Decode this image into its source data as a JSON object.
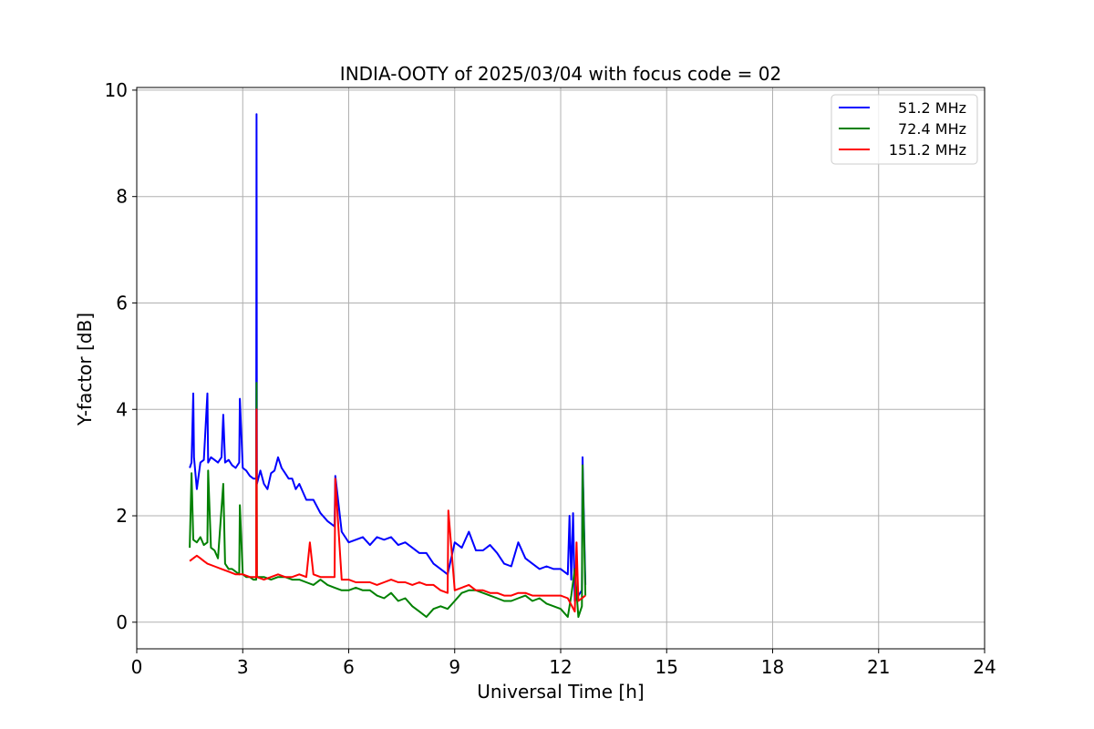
{
  "chart_data": {
    "type": "line",
    "title": "INDIA-OOTY of 2025/03/04 with focus code = 02",
    "xlabel": "Universal Time [h]",
    "ylabel": "Y-factor [dB]",
    "xlim": [
      0,
      24
    ],
    "ylim": [
      -0.5,
      10.05
    ],
    "xticks": [
      "0",
      "3",
      "6",
      "9",
      "12",
      "15",
      "18",
      "21",
      "24"
    ],
    "yticks": [
      "0",
      "2",
      "4",
      "6",
      "8",
      "10"
    ],
    "grid": true,
    "legend_position": "top-right",
    "series": [
      {
        "name": " 51.2 MHz",
        "color": "#0000ff",
        "x": [
          1.5,
          1.55,
          1.6,
          1.62,
          1.7,
          1.8,
          1.9,
          2.0,
          2.02,
          2.1,
          2.2,
          2.3,
          2.4,
          2.45,
          2.5,
          2.6,
          2.7,
          2.8,
          2.9,
          2.92,
          3.0,
          3.1,
          3.2,
          3.3,
          3.38,
          3.39,
          3.4,
          3.5,
          3.6,
          3.7,
          3.8,
          3.9,
          4.0,
          4.1,
          4.2,
          4.3,
          4.4,
          4.5,
          4.6,
          4.8,
          5.0,
          5.2,
          5.4,
          5.6,
          5.62,
          5.8,
          6.0,
          6.2,
          6.4,
          6.6,
          6.8,
          7.0,
          7.2,
          7.4,
          7.6,
          7.8,
          8.0,
          8.2,
          8.4,
          8.6,
          8.8,
          9.0,
          9.2,
          9.4,
          9.6,
          9.8,
          10.0,
          10.2,
          10.4,
          10.6,
          10.8,
          11.0,
          11.2,
          11.4,
          11.6,
          11.8,
          12.0,
          12.2,
          12.25,
          12.3,
          12.35,
          12.4,
          12.5,
          12.6,
          12.62,
          12.7
        ],
        "y": [
          2.9,
          3.0,
          4.3,
          3.1,
          2.5,
          3.0,
          3.05,
          4.3,
          3.0,
          3.1,
          3.05,
          3.0,
          3.1,
          3.9,
          3.0,
          3.05,
          2.95,
          2.9,
          3.0,
          4.2,
          2.9,
          2.85,
          2.75,
          2.7,
          2.7,
          9.55,
          2.6,
          2.85,
          2.6,
          2.5,
          2.8,
          2.85,
          3.1,
          2.9,
          2.8,
          2.7,
          2.7,
          2.5,
          2.6,
          2.3,
          2.3,
          2.05,
          1.9,
          1.8,
          2.75,
          1.7,
          1.5,
          1.55,
          1.6,
          1.45,
          1.6,
          1.55,
          1.6,
          1.45,
          1.5,
          1.4,
          1.3,
          1.3,
          1.1,
          1.0,
          0.9,
          1.5,
          1.4,
          1.7,
          1.35,
          1.35,
          1.45,
          1.3,
          1.1,
          1.05,
          1.5,
          1.2,
          1.1,
          1.0,
          1.05,
          1.0,
          1.0,
          0.9,
          2.0,
          0.8,
          2.05,
          0.4,
          0.5,
          0.6,
          3.1,
          0.7
        ]
      },
      {
        "name": " 72.4 MHz",
        "color": "#008000",
        "x": [
          1.5,
          1.55,
          1.6,
          1.7,
          1.8,
          1.9,
          2.0,
          2.02,
          2.1,
          2.2,
          2.3,
          2.45,
          2.5,
          2.6,
          2.7,
          2.8,
          2.9,
          2.92,
          3.0,
          3.1,
          3.2,
          3.3,
          3.38,
          3.39,
          3.4,
          3.6,
          3.8,
          4.0,
          4.2,
          4.4,
          4.6,
          4.8,
          5.0,
          5.2,
          5.4,
          5.6,
          5.8,
          6.0,
          6.2,
          6.4,
          6.6,
          6.8,
          7.0,
          7.2,
          7.4,
          7.6,
          7.8,
          8.0,
          8.2,
          8.4,
          8.6,
          8.8,
          9.0,
          9.2,
          9.4,
          9.6,
          9.8,
          10.0,
          10.2,
          10.4,
          10.6,
          10.8,
          11.0,
          11.2,
          11.4,
          11.6,
          11.8,
          12.0,
          12.2,
          12.3,
          12.4,
          12.5,
          12.6,
          12.62,
          12.7
        ],
        "y": [
          1.4,
          2.8,
          1.55,
          1.5,
          1.6,
          1.45,
          1.5,
          2.85,
          1.4,
          1.35,
          1.2,
          2.6,
          1.1,
          1.0,
          1.0,
          0.95,
          0.9,
          2.2,
          0.9,
          0.85,
          0.85,
          0.8,
          0.8,
          4.5,
          0.85,
          0.85,
          0.8,
          0.85,
          0.85,
          0.8,
          0.8,
          0.75,
          0.7,
          0.8,
          0.7,
          0.65,
          0.6,
          0.6,
          0.65,
          0.6,
          0.6,
          0.5,
          0.45,
          0.55,
          0.4,
          0.45,
          0.3,
          0.2,
          0.1,
          0.25,
          0.3,
          0.25,
          0.4,
          0.55,
          0.6,
          0.6,
          0.55,
          0.5,
          0.45,
          0.4,
          0.4,
          0.45,
          0.5,
          0.4,
          0.45,
          0.35,
          0.3,
          0.25,
          0.1,
          0.5,
          1.0,
          0.1,
          0.3,
          2.95,
          0.5
        ]
      },
      {
        "name": " 151.2 MHz",
        "color": "#ff0000",
        "x": [
          1.5,
          1.6,
          1.7,
          1.8,
          1.9,
          2.0,
          2.2,
          2.4,
          2.6,
          2.8,
          3.0,
          3.2,
          3.38,
          3.39,
          3.4,
          3.6,
          3.8,
          4.0,
          4.2,
          4.4,
          4.6,
          4.8,
          4.9,
          5.0,
          5.2,
          5.4,
          5.6,
          5.62,
          5.8,
          6.0,
          6.2,
          6.4,
          6.6,
          6.8,
          7.0,
          7.2,
          7.4,
          7.6,
          7.8,
          8.0,
          8.2,
          8.4,
          8.6,
          8.8,
          8.82,
          9.0,
          9.2,
          9.4,
          9.6,
          9.8,
          10.0,
          10.2,
          10.4,
          10.6,
          10.8,
          11.0,
          11.2,
          11.4,
          11.6,
          11.8,
          12.0,
          12.2,
          12.4,
          12.45,
          12.5,
          12.6,
          12.7
        ],
        "y": [
          1.15,
          1.2,
          1.25,
          1.2,
          1.15,
          1.1,
          1.05,
          1.0,
          0.95,
          0.9,
          0.9,
          0.85,
          0.85,
          4.0,
          0.85,
          0.8,
          0.85,
          0.9,
          0.85,
          0.85,
          0.9,
          0.85,
          1.5,
          0.9,
          0.85,
          0.85,
          0.85,
          2.7,
          0.8,
          0.8,
          0.75,
          0.75,
          0.75,
          0.7,
          0.75,
          0.8,
          0.75,
          0.75,
          0.7,
          0.75,
          0.7,
          0.7,
          0.6,
          0.55,
          2.1,
          0.6,
          0.65,
          0.7,
          0.6,
          0.6,
          0.55,
          0.55,
          0.5,
          0.5,
          0.55,
          0.55,
          0.5,
          0.5,
          0.5,
          0.5,
          0.5,
          0.45,
          0.2,
          1.5,
          0.4,
          0.45,
          0.5
        ]
      }
    ]
  }
}
